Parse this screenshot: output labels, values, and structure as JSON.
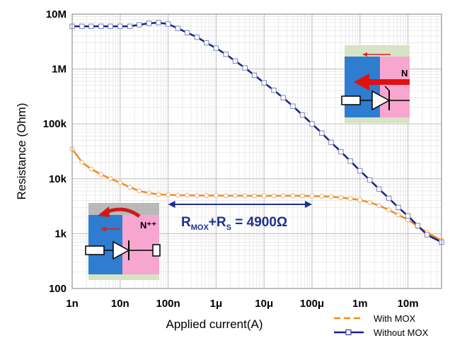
{
  "chart_data": {
    "type": "line",
    "title": "",
    "xlabel": "Applied current(A)",
    "ylabel": "Resistance (Ohm)",
    "x_scale": "log",
    "y_scale": "log",
    "xlim": [
      1e-09,
      0.05
    ],
    "ylim": [
      100,
      10000000
    ],
    "grid": true,
    "x_ticks": [
      {
        "value": 1e-09,
        "label": "1n"
      },
      {
        "value": 1e-08,
        "label": "10n"
      },
      {
        "value": 1e-07,
        "label": "100n"
      },
      {
        "value": 1e-06,
        "label": "1μ"
      },
      {
        "value": 1e-05,
        "label": "10μ"
      },
      {
        "value": 0.0001,
        "label": "100μ"
      },
      {
        "value": 0.001,
        "label": "1m"
      },
      {
        "value": 0.01,
        "label": "10m"
      }
    ],
    "y_ticks": [
      {
        "value": 100,
        "label": "100"
      },
      {
        "value": 1000,
        "label": "1k"
      },
      {
        "value": 10000,
        "label": "10k"
      },
      {
        "value": 100000,
        "label": "100k"
      },
      {
        "value": 1000000,
        "label": "1M"
      },
      {
        "value": 10000000,
        "label": "10M"
      }
    ],
    "legend_position": "bottom-right",
    "series": [
      {
        "name": "With MOX",
        "color": "#f08c1e",
        "line": "dashed",
        "x": [
          1e-09,
          1.6e-09,
          2.5e-09,
          4e-09,
          6.3e-09,
          1e-08,
          1.6e-08,
          2.5e-08,
          4e-08,
          6.3e-08,
          1e-07,
          1.6e-07,
          2.5e-07,
          4e-07,
          6.3e-07,
          1e-06,
          1.6e-06,
          2.5e-06,
          4e-06,
          6.3e-06,
          1e-05,
          1.6e-05,
          2.5e-05,
          4e-05,
          6.3e-05,
          0.0001,
          0.00016,
          0.00025,
          0.0004,
          0.00063,
          0.001,
          0.0016,
          0.0025,
          0.004,
          0.0063,
          0.01,
          0.016,
          0.025,
          0.05
        ],
        "values": [
          35000,
          20000,
          15000,
          12000,
          10000,
          8500,
          7000,
          6000,
          5500,
          5200,
          5100,
          5000,
          5000,
          4950,
          4950,
          4950,
          4920,
          4920,
          4900,
          4900,
          4900,
          4900,
          4900,
          4900,
          4900,
          4850,
          4800,
          4700,
          4550,
          4350,
          4100,
          3700,
          3250,
          2700,
          2200,
          1800,
          1350,
          1050,
          750
        ]
      },
      {
        "name": "Without MOX",
        "color": "#1a1f8c",
        "line": "solid",
        "marker": "square",
        "x": [
          1e-09,
          1.6e-09,
          2.5e-09,
          4e-09,
          6.3e-09,
          1e-08,
          1.6e-08,
          2.5e-08,
          4e-08,
          6.3e-08,
          1e-07,
          1.6e-07,
          2.5e-07,
          4e-07,
          6.3e-07,
          1e-06,
          1.6e-06,
          2.5e-06,
          4e-06,
          6.3e-06,
          1e-05,
          1.6e-05,
          2.5e-05,
          4e-05,
          6.3e-05,
          0.0001,
          0.00016,
          0.00025,
          0.0004,
          0.00063,
          0.001,
          0.0016,
          0.0025,
          0.004,
          0.0063,
          0.01,
          0.016,
          0.025,
          0.05
        ],
        "values": [
          6000000,
          6000000,
          6000000,
          6000000,
          6000000,
          6000000,
          6000000,
          6400000,
          6800000,
          7000000,
          6600000,
          5500000,
          4600000,
          3800000,
          3000000,
          2400000,
          1850000,
          1400000,
          1050000,
          770000,
          560000,
          410000,
          300000,
          210000,
          145000,
          100000,
          68000,
          46000,
          31000,
          21000,
          14000,
          9500,
          6500,
          4400,
          3000,
          2100,
          1400,
          950,
          700
        ]
      }
    ],
    "annotations": [
      {
        "text_main": "R",
        "sub1": "MOX",
        "plus": "+R",
        "sub2": "S",
        "value": " = 4900Ω",
        "range": [
          1e-07,
          0.0001
        ]
      }
    ],
    "insets": [
      {
        "label": "N",
        "location": "top-right"
      },
      {
        "label": "N⁺⁺",
        "location": "bottom-left"
      }
    ]
  }
}
